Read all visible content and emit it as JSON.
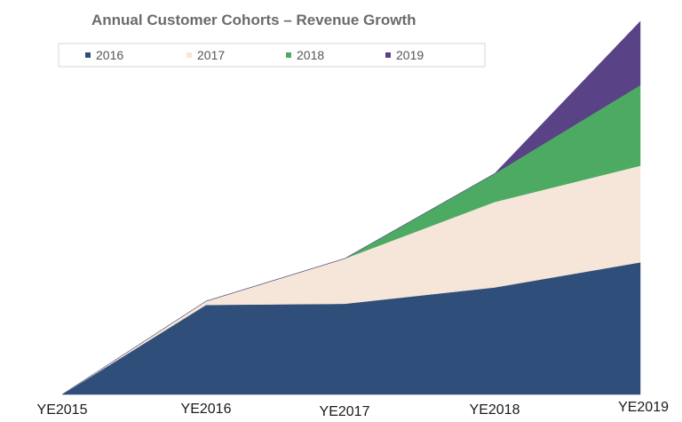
{
  "chart_data": {
    "type": "area",
    "stacked": true,
    "title": "Annual Customer Cohorts – Revenue Growth",
    "xlabel": "",
    "ylabel": "",
    "categories": [
      "YE2015",
      "YE2016",
      "YE2017",
      "YE2018",
      "YE2019"
    ],
    "ylim": [
      0,
      100
    ],
    "grid": false,
    "legend_position": "top",
    "series": [
      {
        "name": "2016",
        "color": "#2f4f7a",
        "values": [
          0,
          24,
          24.3,
          28.7,
          35.4
        ]
      },
      {
        "name": "2017",
        "color": "#f5e6d9",
        "values": [
          0,
          1,
          12.1,
          22.9,
          25.9
        ]
      },
      {
        "name": "2018",
        "color": "#4daa63",
        "values": [
          0,
          0,
          0,
          7.6,
          21.6
        ]
      },
      {
        "name": "2019",
        "color": "#5a4287",
        "values": [
          0,
          0,
          0,
          0,
          17.1
        ]
      }
    ]
  }
}
